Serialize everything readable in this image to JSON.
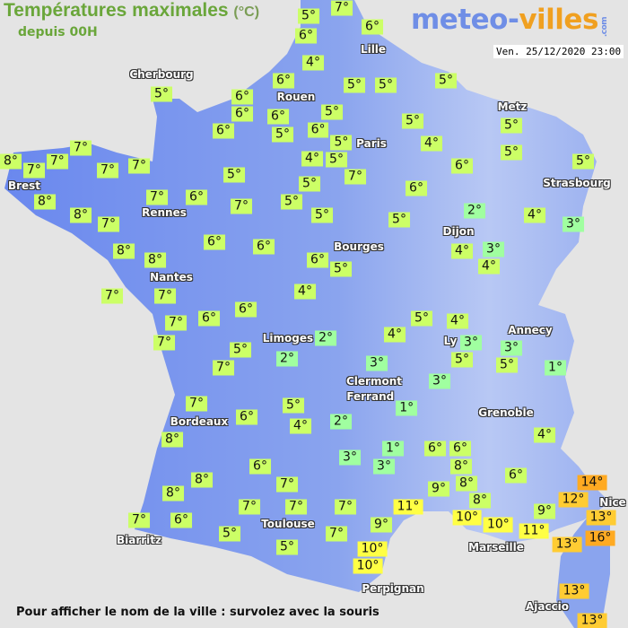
{
  "header": {
    "title": "Températures maximales",
    "unit": "(°C)",
    "subtitle": "depuis 00H",
    "datetime": "Ven. 25/12/2020 23:00"
  },
  "logo": {
    "part1": "meteo-",
    "part2": "villes",
    "part3": ".com"
  },
  "footer": "Pour afficher le nom de la ville : survolez avec la souris",
  "colors": {
    "background": "#e4e4e4",
    "land": "#6f8ff0",
    "cold": "#a0ffa0",
    "mild": "#ccff66",
    "warm": "#ffff44",
    "hot": "#ffcc33",
    "hotter": "#ffaa22"
  },
  "cities": [
    "Cherbourg",
    "Lille",
    "Rouen",
    "Paris",
    "Metz",
    "Strasbourg",
    "Brest",
    "Rennes",
    "Dijon",
    "Bourges",
    "Nantes",
    "Limoges",
    "Ly",
    "Annecy",
    "Clermont",
    "Ferrand",
    "Grenoble",
    "Bordeaux",
    "Nice",
    "Toulouse",
    "Marseille",
    "Biarritz",
    "Perpignan",
    "Ajaccio"
  ],
  "temperatures": [
    "5°",
    "7°",
    "6°",
    "6°",
    "4°",
    "6°",
    "6°",
    "6°",
    "6°",
    "5°",
    "6°",
    "6°",
    "5°",
    "5°",
    "5°",
    "5°",
    "5°",
    "4°",
    "5°",
    "4°",
    "5°",
    "7°",
    "5°",
    "5°",
    "5°",
    "5°",
    "6°",
    "6°",
    "5°",
    "7°",
    "8°",
    "7°",
    "7°",
    "7°",
    "7°",
    "8°",
    "5°",
    "7°",
    "6°",
    "7°",
    "5°",
    "5°",
    "8°",
    "7°",
    "8°",
    "8°",
    "6°",
    "6°",
    "5°",
    "2°",
    "4°",
    "3°",
    "6°",
    "5°",
    "4°",
    "3°",
    "4°",
    "4°",
    "7°",
    "7°",
    "7°",
    "6°",
    "6°",
    "7°",
    "5°",
    "4°",
    "4°",
    "2°",
    "3°",
    "3°",
    "5°",
    "7°",
    "2°",
    "3°",
    "5°",
    "5°",
    "1°",
    "3°",
    "7°",
    "6°",
    "5°",
    "1°",
    "4°",
    "2°",
    "8°",
    "4°",
    "3°",
    "1°",
    "6°",
    "6°",
    "3°",
    "8°",
    "6°",
    "8°",
    "7°",
    "9°",
    "8°",
    "6°",
    "14°",
    "12°",
    "8°",
    "8°",
    "7°",
    "7°",
    "7°",
    "11°",
    "9°",
    "13°",
    "10°",
    "10°",
    "7°",
    "6°",
    "9°",
    "11°",
    "16°",
    "13°",
    "5°",
    "7°",
    "5°",
    "10°",
    "10°",
    "13°",
    "13°"
  ]
}
